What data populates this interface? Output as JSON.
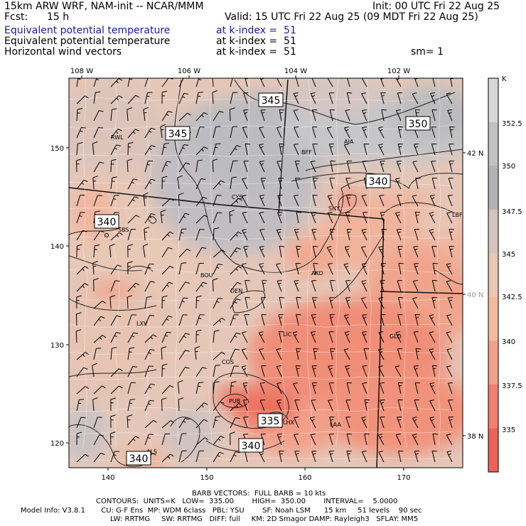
{
  "header": {
    "model": "15km ARW WRF, NAM-init -- NCAR/MMM",
    "init": "Init: 00 UTC Fri 22 Aug 25",
    "fcst_label": "Fcst:",
    "fcst_value": "15 h",
    "valid": "Valid: 15 UTC Fri 22 Aug 25 (09 MDT Fri 22 Aug 25)",
    "fields": [
      {
        "name": "Equivalent potential temperature",
        "level": "at k-index =  51"
      },
      {
        "name": "Equivalent potential temperature",
        "level": "at k-index =  51"
      },
      {
        "name": "Horizontal wind vectors",
        "level": "at k-index =  51"
      }
    ],
    "smoothing": "sm= 1"
  },
  "axes": {
    "top_lon": [
      "108 W",
      "106 W",
      "104 W",
      "102 W"
    ],
    "left_y": [
      "150",
      "140",
      "130",
      "120"
    ],
    "bottom_x": [
      "140",
      "150",
      "160",
      "170"
    ],
    "right_lat": [
      "42 N",
      "40 N",
      "38 N"
    ]
  },
  "colorbar": {
    "unit": "K",
    "labels": [
      "352.5",
      "350",
      "347.5",
      "345",
      "342.5",
      "340",
      "337.5",
      "335"
    ],
    "colors": [
      "#d8d8d8",
      "#c2c2c2",
      "#b2b2b6",
      "#d3c4c1",
      "#e8c8b4",
      "#f2bb9e",
      "#f3a08a",
      "#f07f6e",
      "#ec6458"
    ]
  },
  "contour_labels": [
    "345",
    "345",
    "350",
    "340",
    "340",
    "335",
    "340",
    "340"
  ],
  "stations": [
    "RWL",
    "BFF",
    "AIA",
    "CYS",
    "SNY",
    "SBS",
    "LBF",
    "BOU",
    "DEN",
    "AKO",
    "LXV",
    "LIC",
    "GLD",
    "COS",
    "PUB",
    "LHX",
    "LAA",
    "ALS"
  ],
  "footer": {
    "barb": "BARB VECTORS:  FULL BARB = 10 kts",
    "contours": "CONTOURS:  UNITS=K   LOW=  335.00        HIGH=  350.00        INTERVAL=    5.0000",
    "model_info": "Model Info: V3.8.1       CU: G-F Ens  MP: WDM 6class   PBL: YSU        SF: Noah LSM      15 km     51 levels    90 sec",
    "physics": "LW: RRTMG     SW: RRTMG   DIFF: full     KM: 2D Smagor DAMP: Rayleigh3   SFLAY: MM5"
  }
}
